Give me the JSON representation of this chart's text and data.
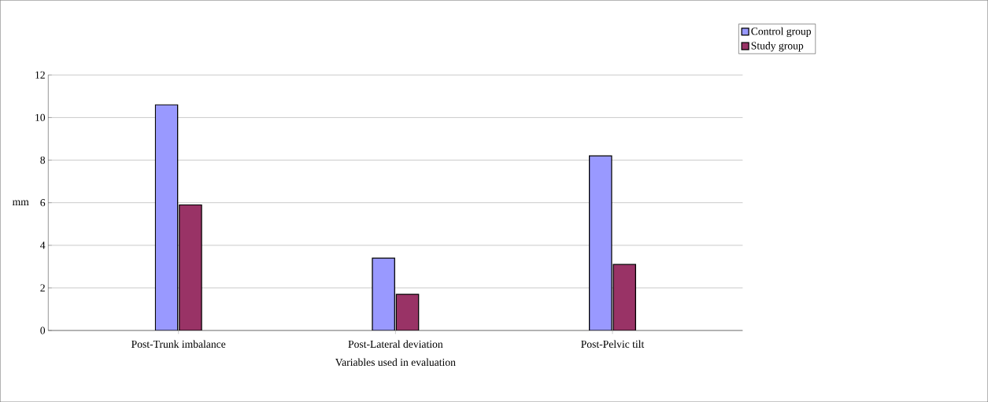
{
  "chart_data": {
    "type": "bar",
    "xlabel": "Variables used in evaluation",
    "ylabel": "mm",
    "categories": [
      "Post-Trunk imbalance",
      "Post-Lateral deviation",
      "Post-Pelvic tilt"
    ],
    "series": [
      {
        "name": "Control group",
        "color": "#9999ff",
        "values": [
          10.6,
          3.4,
          8.2
        ]
      },
      {
        "name": "Study group",
        "color": "#993366",
        "values": [
          5.9,
          1.7,
          3.1
        ]
      }
    ],
    "ylim": [
      0,
      12
    ],
    "yticks": [
      0,
      2,
      4,
      6,
      8,
      10,
      12
    ],
    "grid": "y",
    "legend": "top right"
  }
}
